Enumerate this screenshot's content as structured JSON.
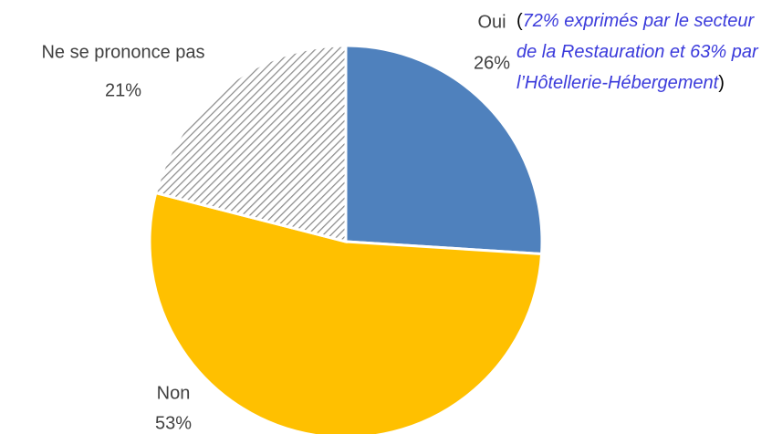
{
  "chart_data": {
    "type": "pie",
    "categories": [
      "Oui",
      "Non",
      "Ne se prononce pas"
    ],
    "values": [
      26,
      53,
      21
    ],
    "value_labels": [
      "26%",
      "53%",
      "21%"
    ],
    "colors": [
      "#4f81bd",
      "#ffc000",
      "hatch"
    ],
    "annotation": {
      "open": "(",
      "text": "72% exprimés par le secteur de la Restauration et 63% par l’Hôtellerie-Hébergement",
      "close": ")"
    }
  }
}
